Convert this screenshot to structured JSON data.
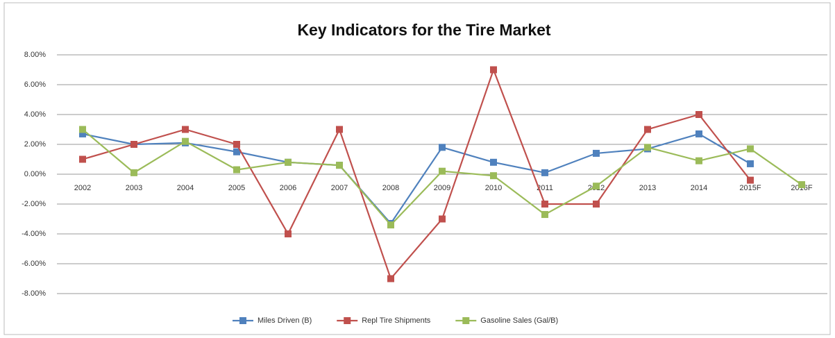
{
  "chart_data": {
    "type": "line",
    "title": "Key Indicators for the Tire Market",
    "categories": [
      "2002",
      "2003",
      "2004",
      "2005",
      "2006",
      "2007",
      "2008",
      "2009",
      "2010",
      "2011",
      "2012",
      "2013",
      "2014",
      "2015F",
      "2016F"
    ],
    "series": [
      {
        "name": "Miles Driven (B)",
        "color": "#4f81bd",
        "values": [
          2.7,
          2.0,
          2.1,
          1.5,
          0.8,
          0.6,
          -3.3,
          1.8,
          0.8,
          0.1,
          1.4,
          1.7,
          2.7,
          0.7,
          null
        ]
      },
      {
        "name": "Repl Tire Shipments",
        "color": "#c0504d",
        "values": [
          1.0,
          2.0,
          3.0,
          2.0,
          -4.0,
          3.0,
          -7.0,
          -3.0,
          7.0,
          -2.0,
          -2.0,
          3.0,
          4.0,
          -0.4,
          null
        ]
      },
      {
        "name": "Gasoline Sales (Gal/B)",
        "color": "#9bbb59",
        "values": [
          3.0,
          0.1,
          2.2,
          0.3,
          0.8,
          0.6,
          -3.4,
          0.2,
          -0.1,
          -2.7,
          -0.8,
          1.8,
          0.9,
          1.7,
          -0.7
        ]
      }
    ],
    "ylim": [
      -8,
      8
    ],
    "yticks": [
      {
        "value": -8,
        "label": "-8.00%"
      },
      {
        "value": -6,
        "label": "-6.00%"
      },
      {
        "value": -4,
        "label": "-4.00%"
      },
      {
        "value": -2,
        "label": "-2.00%"
      },
      {
        "value": 0,
        "label": "0.00%"
      },
      {
        "value": 2,
        "label": "2.00%"
      },
      {
        "value": 4,
        "label": "4.00%"
      },
      {
        "value": 6,
        "label": "6.00%"
      },
      {
        "value": 8,
        "label": "8.00%"
      }
    ],
    "grid": true,
    "legend": "bottom"
  }
}
